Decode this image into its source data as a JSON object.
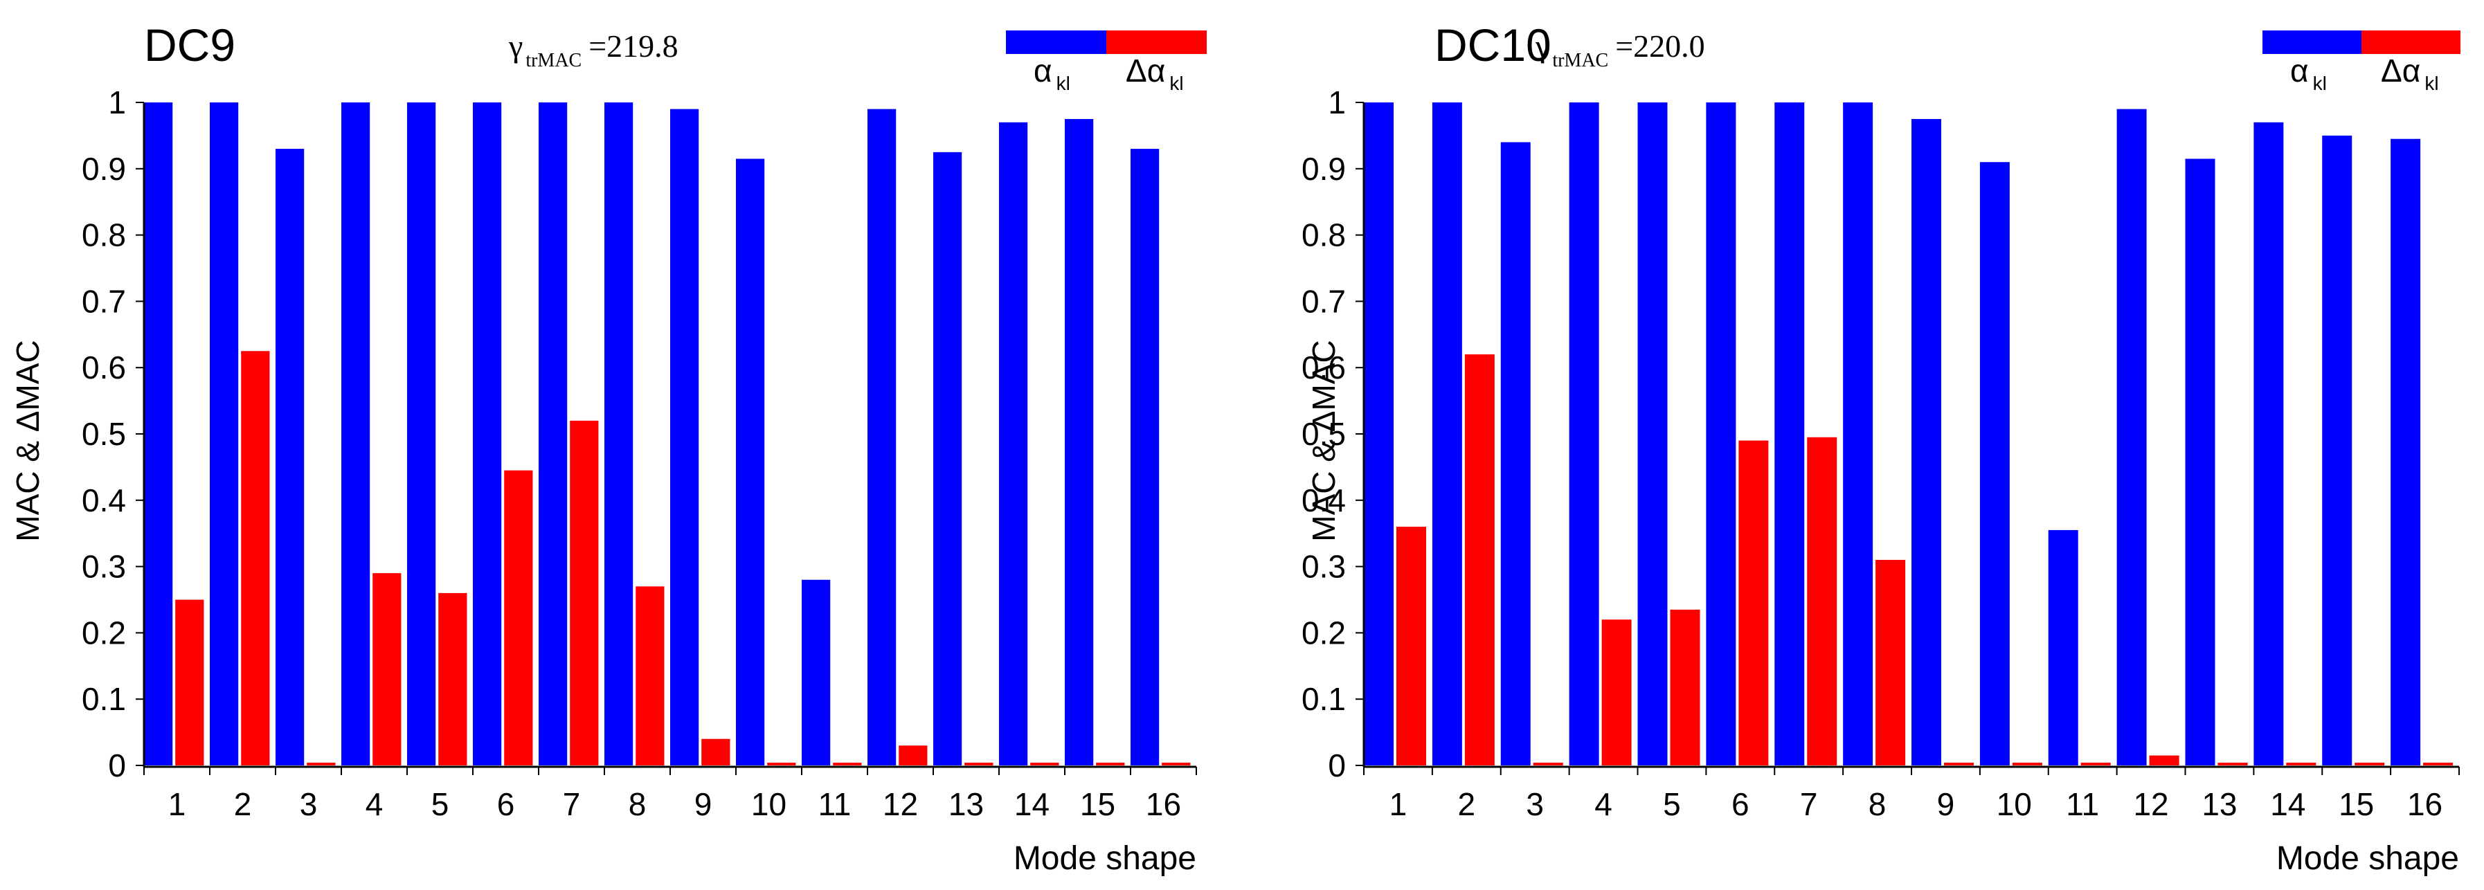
{
  "chart_data": [
    {
      "type": "bar",
      "panel_title": "DC9",
      "gamma_symbol": "γ",
      "gamma_subscript": "trMAC",
      "gamma_value": "=219.8",
      "ylabel": "MAC & ΔMAC",
      "xlabel": "Mode shape",
      "ylim": [
        0,
        1
      ],
      "yticks": [
        0,
        0.1,
        0.2,
        0.3,
        0.4,
        0.5,
        0.6,
        0.7,
        0.8,
        0.9,
        1
      ],
      "ytick_labels": [
        "0",
        "0.1",
        "0.2",
        "0.3",
        "0.4",
        "0.5",
        "0.6",
        "0.7",
        "0.8",
        "0.9",
        "1"
      ],
      "categories": [
        "1",
        "2",
        "3",
        "4",
        "5",
        "6",
        "7",
        "8",
        "9",
        "10",
        "11",
        "12",
        "13",
        "14",
        "15",
        "16"
      ],
      "series": [
        {
          "name": "α",
          "name_sub": "kl",
          "color": "#0000ff",
          "values": [
            1.0,
            1.0,
            0.93,
            1.0,
            1.0,
            1.0,
            1.0,
            1.0,
            0.99,
            0.915,
            0.28,
            0.99,
            0.925,
            0.97,
            0.975,
            0.93
          ]
        },
        {
          "name": "Δα",
          "name_sub": "kl",
          "color": "#ff0000",
          "values": [
            0.25,
            0.625,
            0.0,
            0.29,
            0.26,
            0.445,
            0.52,
            0.27,
            0.04,
            0.0,
            0.0,
            0.03,
            0.0,
            0.0,
            0.0,
            0.0
          ]
        }
      ]
    },
    {
      "type": "bar",
      "panel_title": "DC10",
      "gamma_symbol": "γ",
      "gamma_subscript": "trMAC",
      "gamma_value": "=220.0",
      "ylabel": "MAC & ΔMAC",
      "xlabel": "Mode shape",
      "ylim": [
        0,
        1
      ],
      "yticks": [
        0,
        0.1,
        0.2,
        0.3,
        0.4,
        0.5,
        0.6,
        0.7,
        0.8,
        0.9,
        1
      ],
      "ytick_labels": [
        "0",
        "0.1",
        "0.2",
        "0.3",
        "0.4",
        "0.5",
        "0.6",
        "0.7",
        "0.8",
        "0.9",
        "1"
      ],
      "categories": [
        "1",
        "2",
        "3",
        "4",
        "5",
        "6",
        "7",
        "8",
        "9",
        "10",
        "11",
        "12",
        "13",
        "14",
        "15",
        "16"
      ],
      "series": [
        {
          "name": "α",
          "name_sub": "kl",
          "color": "#0000ff",
          "values": [
            1.0,
            1.0,
            0.94,
            1.0,
            1.0,
            1.0,
            1.0,
            1.0,
            0.975,
            0.91,
            0.355,
            0.99,
            0.915,
            0.97,
            0.95,
            0.945
          ]
        },
        {
          "name": "Δα",
          "name_sub": "kl",
          "color": "#ff0000",
          "values": [
            0.36,
            0.62,
            0.0,
            0.22,
            0.235,
            0.49,
            0.495,
            0.31,
            0.0,
            0.0,
            0.0,
            0.015,
            0.0,
            0.0,
            0.0,
            0.0
          ]
        }
      ]
    }
  ]
}
